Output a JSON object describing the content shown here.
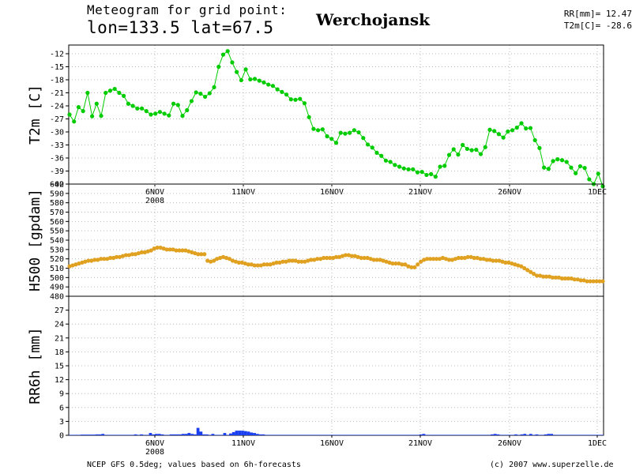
{
  "header": {
    "line1": "Meteogram for grid point:",
    "line2": "lon=133.5 lat=67.5",
    "station": "Werchojansk",
    "rr_label": "RR[mm]= 12.47",
    "t2m_label": "T2m[C]= -28.6"
  },
  "footer": {
    "source": "NCEP GFS 0.5deg; values based on 6h-forecasts",
    "copyright": "(c) 2007 www.superzelle.de"
  },
  "colors": {
    "t2m": "#00cc00",
    "h500": "#e0a020",
    "rr6h": "#1a3ff0",
    "grid": "#bbbbbb"
  },
  "chart_data": [
    {
      "type": "line",
      "panel": "T2m",
      "ylabel": "T2m [C]",
      "ylim": [
        -42,
        -10
      ],
      "yticks": [
        -42,
        -39,
        -36,
        -33,
        -30,
        -27,
        -24,
        -21,
        -18,
        -15,
        -12
      ],
      "xlabels": [
        "6NOV",
        "11NOV",
        "16NOV",
        "21NOV",
        "26NOV",
        "1DEC"
      ],
      "xyear": "2008",
      "x_day_start": 2,
      "x_day_end": 32,
      "grid": true,
      "series": [
        {
          "values": [
            -26,
            -27.6,
            -24.3,
            -25.2,
            -21,
            -26.4,
            -23.5,
            -26.3,
            -21,
            -20.5,
            -20.1,
            -21,
            -21.7,
            -23.5,
            -24,
            -24.6,
            -24.6,
            -25.2,
            -26,
            -25.8,
            -25.4,
            -25.8,
            -26.2,
            -23.5,
            -23.8,
            -26.3,
            -25,
            -22.9,
            -20.9,
            -21.2,
            -21.9,
            -21.1,
            -19.7,
            -15,
            -12.2,
            -11.4,
            -14,
            -16.2,
            -18.1,
            -15.6,
            -17.9,
            -17.8,
            -18.2,
            -18.6,
            -19.1,
            -19.4,
            -20.2,
            -20.8,
            -21.4,
            -22.5,
            -22.6,
            -22.4,
            -23.4,
            -26.6,
            -29.3,
            -29.6,
            -29.4,
            -31,
            -31.6,
            -32.5,
            -30.2,
            -30.4,
            -30.2,
            -29.6,
            -30.1,
            -31.4,
            -32.9,
            -33.6,
            -34.8,
            -35.5,
            -36.6,
            -36.9,
            -37.6,
            -38,
            -38.4,
            -38.6,
            -38.6,
            -39.3,
            -39.2,
            -39.9,
            -39.7,
            -40.3,
            -38,
            -37.8,
            -35.3,
            -34,
            -35.2,
            -33,
            -33.9,
            -34.2,
            -34.1,
            -35.1,
            -33.5,
            -29.5,
            -29.8,
            -30.5,
            -31.3,
            -29.9,
            -29.6,
            -29,
            -28,
            -29.2,
            -29.1,
            -31.9,
            -33.7,
            -38.2,
            -38.5,
            -36.7,
            -36.3,
            -36.5,
            -36.9,
            -38.2,
            -39.5,
            -37.9,
            -38.3,
            -40.9,
            -42,
            -39.6,
            -42.5
          ]
        }
      ]
    },
    {
      "type": "scatter",
      "panel": "H500",
      "ylabel": "H500 [gpdam]",
      "ylim": [
        480,
        600
      ],
      "yticks": [
        480,
        490,
        500,
        510,
        520,
        530,
        540,
        550,
        560,
        570,
        580,
        590,
        600
      ],
      "grid": true,
      "series": [
        {
          "values": [
            512,
            513,
            514,
            515,
            516,
            517,
            518,
            518,
            519,
            519,
            520,
            520,
            520,
            521,
            521,
            522,
            522,
            523,
            524,
            524,
            525,
            525,
            526,
            527,
            527,
            528,
            529,
            531,
            532,
            532,
            531,
            530,
            530,
            530,
            529,
            529,
            529,
            529,
            528,
            527,
            526,
            525,
            525,
            525,
            518,
            517,
            518,
            520,
            521,
            522,
            521,
            520,
            518,
            517,
            516,
            516,
            515,
            514,
            514,
            513,
            513,
            513,
            514,
            514,
            514,
            515,
            516,
            516,
            517,
            517,
            518,
            518,
            518,
            517,
            517,
            517,
            518,
            519,
            519,
            520,
            520,
            521,
            521,
            521,
            521,
            522,
            522,
            523,
            524,
            524,
            523,
            523,
            522,
            521,
            521,
            521,
            520,
            519,
            519,
            519,
            518,
            517,
            516,
            515,
            515,
            515,
            514,
            514,
            512,
            511,
            511,
            514,
            517,
            519,
            520,
            520,
            520,
            520,
            520,
            521,
            520,
            519,
            519,
            520,
            521,
            521,
            521,
            522,
            522,
            521,
            521,
            520,
            520,
            519,
            519,
            518,
            518,
            518,
            517,
            516,
            516,
            515,
            514,
            513,
            512,
            510,
            508,
            506,
            504,
            502,
            502,
            501,
            501,
            501,
            500,
            500,
            500,
            499,
            499,
            499,
            499,
            498,
            498,
            497,
            497,
            496,
            496,
            496,
            496,
            496,
            496
          ]
        }
      ]
    },
    {
      "type": "bar",
      "panel": "RR6h",
      "ylabel": "RR6h [mm]",
      "ylim": [
        0,
        30
      ],
      "yticks": [
        0,
        3,
        6,
        9,
        12,
        15,
        18,
        21,
        24,
        27
      ],
      "xlabels": [
        "6NOV",
        "11NOV",
        "16NOV",
        "21NOV",
        "26NOV",
        "1DEC"
      ],
      "xyear": "2008",
      "grid": true,
      "series": [
        {
          "values": [
            0.1,
            0.1,
            0.1,
            0.1,
            0.15,
            0.15,
            0.15,
            0.15,
            0.15,
            0.2,
            0.2,
            0.3,
            0.1,
            0.1,
            0.1,
            0.1,
            0.1,
            0.1,
            0.1,
            0.1,
            0.1,
            0.1,
            0.2,
            0.1,
            0.2,
            0.1,
            0.1,
            0.5,
            0.2,
            0.3,
            0.3,
            0.2,
            0.1,
            0.1,
            0.2,
            0.2,
            0.2,
            0.2,
            0.3,
            0.3,
            0.5,
            0.3,
            0.2,
            1.6,
            0.8,
            0.2,
            0.2,
            0.1,
            0.3,
            0.1,
            0.1,
            0.1,
            0.5,
            0.1,
            0.4,
            0.7,
            1,
            1,
            1,
            0.9,
            0.8,
            0.6,
            0.5,
            0.3,
            0.2,
            0.2,
            0.1,
            0.1,
            0.1,
            0.1,
            0.1,
            0.1,
            0.1,
            0.1,
            0.1,
            0.1,
            0.1,
            0.1,
            0.1,
            0.1,
            0.1,
            0.1,
            0.1,
            0.1,
            0.1,
            0.1,
            0.1,
            0.1,
            0.1,
            0.1,
            0.1,
            0.1,
            0.1,
            0.1,
            0.1,
            0.1,
            0.1,
            0.1,
            0.1,
            0.1,
            0.1,
            0.1,
            0.1,
            0.1,
            0.1,
            0.1,
            0.1,
            0.1,
            0.1,
            0.1,
            0.1,
            0.1,
            0.1,
            0.1,
            0.1,
            0.1,
            0.1,
            0.1,
            0.2,
            0.3,
            0.1,
            0.1,
            0.1,
            0.1,
            0.1,
            0.1,
            0.1,
            0.1,
            0.1,
            0.1,
            0.1,
            0.1,
            0.1,
            0.1,
            0.1,
            0.1,
            0.1,
            0.1,
            0.1,
            0.1,
            0.1,
            0.1,
            0.2,
            0.3,
            0.2,
            0.1,
            0.1,
            0.1,
            0.1,
            0.1,
            0.2,
            0.1,
            0.2,
            0.3,
            0.1,
            0.3,
            0.1,
            0.2,
            0.1,
            0.1,
            0.2,
            0.3,
            0.3,
            0.1,
            0.1,
            0.1,
            0.1,
            0.1,
            0.1,
            0.1,
            0.1,
            0.1,
            0.1,
            0.1,
            0.1,
            0.1,
            0.1,
            0.1,
            0.1,
            0.1
          ]
        }
      ]
    }
  ]
}
